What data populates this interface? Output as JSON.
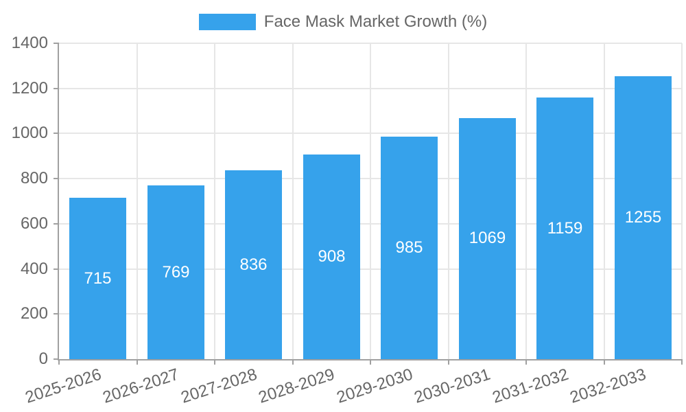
{
  "legend": {
    "label": "Face Mask Market Growth (%)"
  },
  "chart_data": {
    "type": "bar",
    "title": "Face Mask Market Growth (%)",
    "series_name": "Face Mask Market Growth (%)",
    "categories": [
      "2025-2026",
      "2026-2027",
      "2027-2028",
      "2028-2029",
      "2029-2030",
      "2030-2031",
      "2031-2032",
      "2032-2033"
    ],
    "values": [
      715,
      769,
      836,
      908,
      985,
      1069,
      1159,
      1255
    ],
    "bar_labels": [
      "715",
      "769",
      "836",
      "908",
      "985",
      "1069",
      "1159",
      "1255"
    ],
    "xlabel": "",
    "ylabel": "",
    "ylim": [
      0,
      1400
    ],
    "ytick_step": 200,
    "yticks": [
      0,
      200,
      400,
      600,
      800,
      1000,
      1200,
      1400
    ],
    "grid": true,
    "legend_position": "top"
  },
  "colors": {
    "bar": "#36A2EB",
    "axis": "#a0a0a0",
    "grid": "#e6e6e6",
    "label_text": "#666666",
    "bar_label": "#ffffff",
    "background": "#ffffff"
  }
}
